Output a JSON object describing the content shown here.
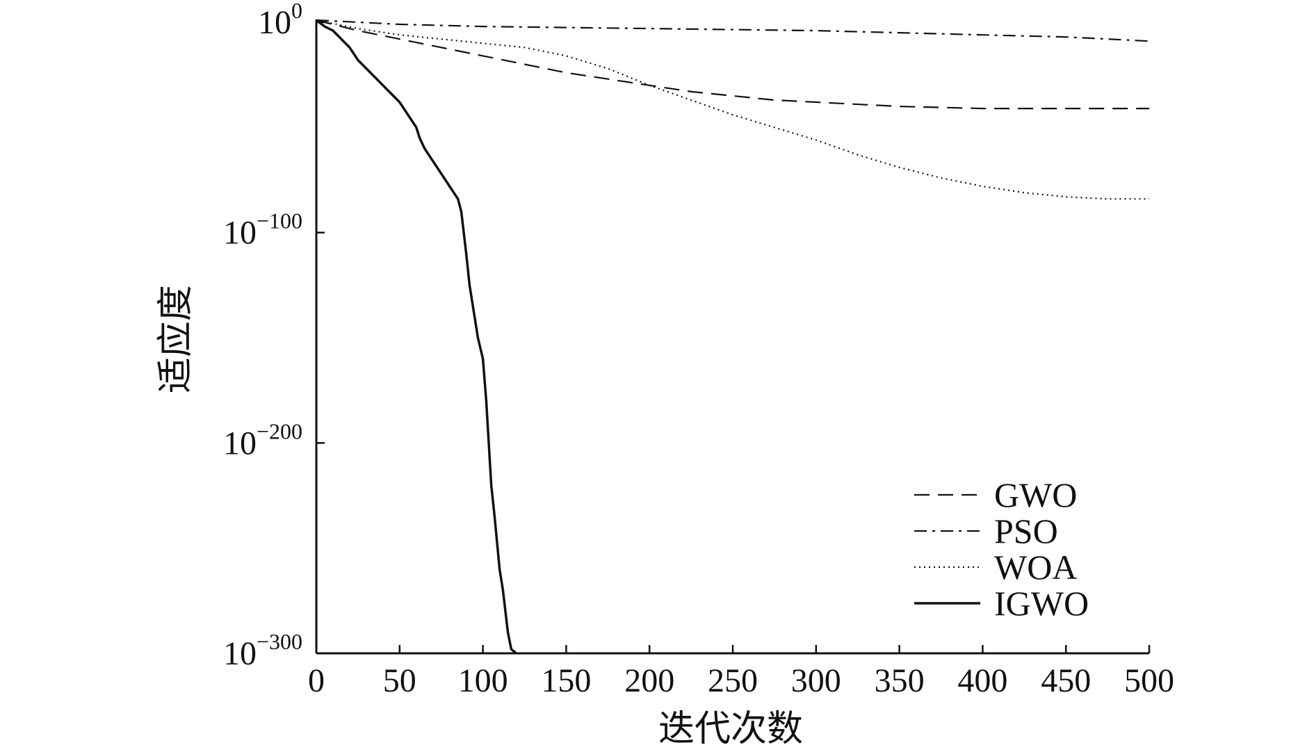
{
  "chart_data": {
    "type": "line",
    "title": "",
    "xlabel": "迭代次数",
    "ylabel": "适应度",
    "xlim": [
      0,
      500
    ],
    "yscale": "log",
    "ylim_exponent": [
      -300,
      0
    ],
    "x_ticks": [
      "0",
      "50",
      "100",
      "150",
      "200",
      "250",
      "300",
      "350",
      "400",
      "450",
      "500"
    ],
    "y_ticks": [
      {
        "base": "10",
        "exp": "0",
        "value_exp": 0
      },
      {
        "base": "10",
        "exp": "−100",
        "value_exp": -100
      },
      {
        "base": "10",
        "exp": "−200",
        "value_exp": -200
      },
      {
        "base": "10",
        "exp": "−300",
        "value_exp": -300
      }
    ],
    "legend_position": "bottom-right",
    "series": [
      {
        "name": "GWO",
        "style": "dashed",
        "x": [
          0,
          25,
          50,
          75,
          100,
          125,
          150,
          175,
          200,
          225,
          250,
          275,
          300,
          350,
          400,
          450,
          500
        ],
        "log10_y": [
          1,
          -4,
          -8,
          -12,
          -16,
          -20,
          -24,
          -27,
          -30,
          -33,
          -35,
          -37,
          -38,
          -40,
          -41,
          -41,
          -41
        ]
      },
      {
        "name": "PSO",
        "style": "dashdot",
        "x": [
          0,
          50,
          100,
          150,
          200,
          250,
          300,
          350,
          400,
          450,
          500
        ],
        "log10_y": [
          1,
          -1,
          -2,
          -2.5,
          -3,
          -3.5,
          -4,
          -5,
          -6,
          -7,
          -9
        ]
      },
      {
        "name": "WOA",
        "style": "dotted",
        "x": [
          0,
          25,
          50,
          75,
          100,
          125,
          150,
          175,
          200,
          225,
          250,
          275,
          300,
          325,
          350,
          375,
          400,
          425,
          450,
          475,
          500
        ],
        "log10_y": [
          1,
          -3,
          -6,
          -8,
          -10,
          -12,
          -16,
          -22,
          -30,
          -37,
          -44,
          -50,
          -56,
          -63,
          -69,
          -74,
          -78,
          -81,
          -83,
          -84,
          -84
        ]
      },
      {
        "name": "IGWO",
        "style": "solid",
        "x": [
          0,
          5,
          10,
          15,
          20,
          25,
          30,
          35,
          40,
          45,
          50,
          55,
          60,
          62,
          65,
          70,
          75,
          80,
          85,
          87,
          90,
          92,
          95,
          97,
          100,
          102,
          105,
          107,
          110,
          112,
          115,
          117,
          120
        ],
        "log10_y": [
          1,
          -2,
          -4,
          -8,
          -12,
          -18,
          -22,
          -26,
          -30,
          -34,
          -38,
          -44,
          -50,
          -55,
          -60,
          -66,
          -72,
          -78,
          -84,
          -90,
          -110,
          -125,
          -140,
          -150,
          -160,
          -180,
          -220,
          -235,
          -260,
          -270,
          -290,
          -298,
          -300
        ]
      }
    ]
  }
}
